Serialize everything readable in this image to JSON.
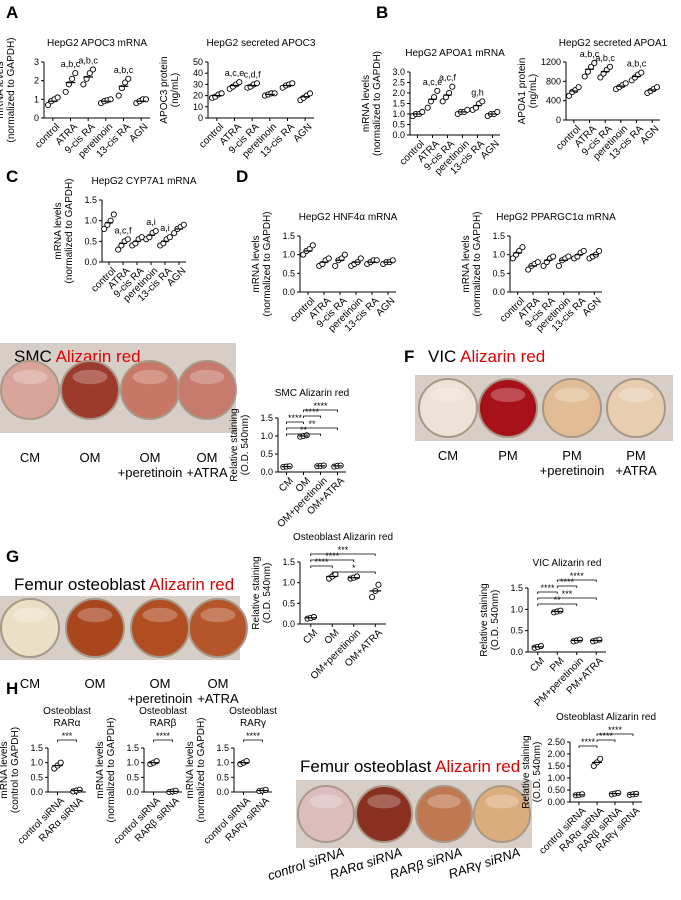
{
  "panel_letters": [
    "A",
    "B",
    "C",
    "D",
    "E",
    "F",
    "G",
    "H"
  ],
  "photos": [
    {
      "title": "SMC",
      "stain": "Alizarin red",
      "labels": [
        [
          "CM"
        ],
        [
          "OM"
        ],
        [
          "OM",
          "+peretinoin"
        ],
        [
          "OM",
          "+ATRA"
        ]
      ],
      "well_colors": [
        "#d8a59a",
        "#9c3b2c",
        "#c77763",
        "#c57a6c"
      ]
    },
    {
      "title": "VIC",
      "stain": "Alizarin red",
      "labels": [
        [
          "CM"
        ],
        [
          "PM"
        ],
        [
          "PM",
          "+peretinoin"
        ],
        [
          "PM",
          "+ATRA"
        ]
      ],
      "well_colors": [
        "#ece2d6",
        "#a8101a",
        "#e2bc94",
        "#e8cdb0"
      ]
    },
    {
      "title": "Femur osteoblast",
      "stain": "Alizarin red",
      "labels": [
        [
          "CM"
        ],
        [
          "OM"
        ],
        [
          "OM",
          "+peretinoin"
        ],
        [
          "OM",
          "+ATRA"
        ]
      ],
      "well_colors": [
        "#eae0c6",
        "#a8461e",
        "#b04e22",
        "#b5562a"
      ]
    },
    {
      "title": "Femur osteoblast",
      "stain": "Alizarin red",
      "labels": [
        [
          "control siRNA"
        ],
        [
          "RARα siRNA"
        ],
        [
          "RARβ siRNA"
        ],
        [
          "RARγ siRNA"
        ]
      ],
      "well_colors": [
        "#dcbcbc",
        "#8a3020",
        "#c07850",
        "#dcad7c"
      ]
    }
  ],
  "chart_data": [
    {
      "type": "dot",
      "title": [
        "HepG2 APOC3 mRNA"
      ],
      "ylabel": [
        "mRNA levels",
        "(normalized to GAPDH)"
      ],
      "color": "#000000",
      "categories": [
        "control",
        "ATRA",
        "9-cis RA",
        "peretinoin",
        "13-cis RA",
        "AGN"
      ],
      "points": [
        [
          0.7,
          0.9,
          1.0,
          1.1
        ],
        [
          1.4,
          1.8,
          2.1,
          2.4
        ],
        [
          1.8,
          2.1,
          2.4,
          2.6
        ],
        [
          0.8,
          0.9,
          0.95,
          1.0
        ],
        [
          1.2,
          1.6,
          1.9,
          2.1
        ],
        [
          0.8,
          0.9,
          1.0,
          1.0
        ]
      ],
      "means": [
        0.9,
        1.9,
        2.2,
        0.9,
        1.7,
        0.9
      ],
      "letters": [
        null,
        "a,b,c",
        "a,b,c",
        null,
        "a,b,c",
        null
      ],
      "ylim": [
        0,
        3
      ],
      "yticks": [
        0,
        1,
        2,
        3
      ]
    },
    {
      "type": "dot",
      "title": [
        "HepG2 secreted APOC3"
      ],
      "ylabel": [
        "APOC3 protein",
        "(ng/mL)"
      ],
      "color": "#000000",
      "categories": [
        "control",
        "ATRA",
        "9-cis RA",
        "peretinoin",
        "13-cis RA",
        "AGN"
      ],
      "points": [
        [
          18,
          19,
          21,
          22
        ],
        [
          26,
          28,
          30,
          32
        ],
        [
          27,
          28,
          30,
          31
        ],
        [
          20,
          21,
          22,
          22
        ],
        [
          27,
          29,
          30,
          31
        ],
        [
          16,
          18,
          20,
          22
        ]
      ],
      "means": [
        20,
        29,
        29,
        21,
        29,
        19
      ],
      "letters": [
        null,
        "a,c,e",
        "c,d,f",
        null,
        null,
        null
      ],
      "ylim": [
        0,
        50
      ],
      "yticks": [
        0,
        10,
        20,
        30,
        40,
        50
      ]
    },
    {
      "type": "dot",
      "title": [
        "HepG2 APOA1 mRNA"
      ],
      "ylabel": [
        "mRNA levels",
        "(normalized to GAPDH)"
      ],
      "color": "#000000",
      "categories": [
        "control",
        "ATRA",
        "9-cis RA",
        "peretinoin",
        "13-cis RA",
        "AGN"
      ],
      "points": [
        [
          0.9,
          1.0,
          1.0,
          1.1
        ],
        [
          1.3,
          1.6,
          1.8,
          2.1
        ],
        [
          1.6,
          1.8,
          2.0,
          2.3
        ],
        [
          1.0,
          1.1,
          1.1,
          1.2
        ],
        [
          1.2,
          1.3,
          1.5,
          1.6
        ],
        [
          0.9,
          1.0,
          1.0,
          1.1
        ]
      ],
      "means": [
        1.0,
        1.7,
        1.9,
        1.1,
        1.4,
        1.0
      ],
      "letters": [
        null,
        "a,c,e",
        "a,c,f",
        null,
        "g,h",
        null
      ],
      "ylim": [
        0,
        3
      ],
      "yticks": [
        {
          "value": 0,
          "label": "0.0"
        },
        0.5,
        {
          "value": 1,
          "label": "1.0"
        },
        1.5,
        {
          "value": 2,
          "label": "2.0"
        },
        2.5,
        {
          "value": 3,
          "label": "3.0"
        }
      ]
    },
    {
      "type": "dot",
      "title": [
        "HepG2 secreted APOA1"
      ],
      "ylabel": [
        "APOA1 protein",
        "(ng/mL)"
      ],
      "color": "#000000",
      "categories": [
        "control",
        "ATRA",
        "9-cis RA",
        "peretinoin",
        "13-cis RA",
        "AGN"
      ],
      "points": [
        [
          500,
          580,
          620,
          680
        ],
        [
          900,
          1000,
          1100,
          1180
        ],
        [
          880,
          960,
          1040,
          1100
        ],
        [
          640,
          680,
          720,
          760
        ],
        [
          820,
          880,
          940,
          980
        ],
        [
          560,
          600,
          640,
          680
        ]
      ],
      "means": [
        600,
        1050,
        1000,
        700,
        900,
        620
      ],
      "letters": [
        null,
        "a,b,c",
        "a,b,c",
        null,
        "a,b,c",
        null
      ],
      "ylim": [
        0,
        1200
      ],
      "yticks": [
        0,
        400,
        800,
        1200
      ]
    },
    {
      "type": "dot",
      "title": [
        "HepG2 CYP7A1 mRNA"
      ],
      "ylabel": [
        "mRNA levels",
        "(normalized to GAPDH)"
      ],
      "color": "#000000",
      "categories": [
        "control",
        "ATRA",
        "9-cis RA",
        "peretinoin",
        "13-cis RA",
        "AGN"
      ],
      "points": [
        [
          0.8,
          0.9,
          1.0,
          1.15
        ],
        [
          0.3,
          0.4,
          0.5,
          0.55
        ],
        [
          0.4,
          0.45,
          0.55,
          0.6
        ],
        [
          0.55,
          0.6,
          0.7,
          0.75
        ],
        [
          0.4,
          0.45,
          0.55,
          0.6
        ],
        [
          0.7,
          0.8,
          0.85,
          0.9
        ]
      ],
      "means": [
        0.95,
        0.45,
        0.5,
        0.65,
        0.5,
        0.8
      ],
      "letters": [
        null,
        "a,c,f",
        null,
        "a,i",
        "a,i",
        null
      ],
      "ylim": [
        0,
        1.5
      ],
      "yticks": [
        {
          "value": 0,
          "label": "0.0"
        },
        0.5,
        {
          "value": 1,
          "label": "1.0"
        },
        1.5
      ]
    },
    {
      "type": "dot",
      "title": [
        "HepG2 HNF4α mRNA"
      ],
      "ylabel": [
        "mRNA levels",
        "(normalized to GAPDH)"
      ],
      "color": "#000000",
      "categories": [
        "control",
        "ATRA",
        "9-cis RA",
        "peretinoin",
        "13-cis RA",
        "AGN"
      ],
      "points": [
        [
          1.0,
          1.1,
          1.15,
          1.25
        ],
        [
          0.7,
          0.75,
          0.85,
          0.9
        ],
        [
          0.7,
          0.85,
          0.9,
          1.0
        ],
        [
          0.7,
          0.75,
          0.8,
          0.9
        ],
        [
          0.75,
          0.8,
          0.85,
          0.85
        ],
        [
          0.75,
          0.8,
          0.8,
          0.85
        ]
      ],
      "means": [
        1.1,
        0.8,
        0.85,
        0.8,
        0.8,
        0.8
      ],
      "ylim": [
        0,
        1.5
      ],
      "yticks": [
        {
          "value": 0,
          "label": "0.0"
        },
        0.5,
        {
          "value": 1,
          "label": "1.0"
        },
        1.5
      ]
    },
    {
      "type": "dot",
      "title": [
        "HepG2 PPARGC1α mRNA"
      ],
      "ylabel": [
        "mRNA levels",
        "(normalized to GAPDH)"
      ],
      "color": "#000000",
      "categories": [
        "control",
        "ATRA",
        "9-cis RA",
        "peretinoin",
        "13-cis RA",
        "AGN"
      ],
      "points": [
        [
          0.9,
          1.0,
          1.1,
          1.2
        ],
        [
          0.6,
          0.7,
          0.75,
          0.8
        ],
        [
          0.7,
          0.8,
          0.9,
          0.95
        ],
        [
          0.7,
          0.85,
          0.9,
          0.95
        ],
        [
          0.9,
          0.95,
          1.05,
          1.1
        ],
        [
          0.9,
          0.95,
          1.0,
          1.1
        ]
      ],
      "means": [
        1.05,
        0.7,
        0.85,
        0.85,
        1.0,
        1.0
      ],
      "ylim": [
        0,
        1.5
      ],
      "yticks": [
        {
          "value": 0,
          "label": "0.0"
        },
        0.5,
        {
          "value": 1,
          "label": "1.0"
        },
        1.5
      ]
    },
    {
      "type": "dot",
      "title": [
        "SMC Alizarin red"
      ],
      "ylabel": [
        "Relative staining",
        "(O.D. 540nm)"
      ],
      "color": "#000000",
      "categories": [
        "CM",
        "OM",
        "OM+peretinoin",
        "OM+ATRA"
      ],
      "points": [
        [
          0.14,
          0.15,
          0.16
        ],
        [
          0.98,
          1.0,
          1.02
        ],
        [
          0.16,
          0.17,
          0.18
        ],
        [
          0.15,
          0.17,
          0.18
        ]
      ],
      "means": [
        0.15,
        1.0,
        0.17,
        0.17
      ],
      "brackets": [
        {
          "from": 1,
          "to": 3,
          "label": "****"
        },
        {
          "from": 1,
          "to": 2,
          "label": "****"
        },
        {
          "from": 0,
          "to": 1,
          "label": "****"
        },
        {
          "from": 0,
          "to": 3,
          "label": "**"
        },
        {
          "from": 0,
          "to": 2,
          "label": "**"
        }
      ],
      "ylim": [
        0,
        1.5
      ],
      "yticks": [
        {
          "value": 0,
          "label": "0.0"
        },
        0.5,
        {
          "value": 1,
          "label": "1.0"
        },
        1.5
      ]
    },
    {
      "type": "dot",
      "title": [
        "VIC Alizarin red"
      ],
      "ylabel": [
        "Relative staining",
        "(O.D. 540nm)"
      ],
      "color": "#000000",
      "categories": [
        "CM",
        "PM",
        "PM+peretinoin",
        "PM+ATRA"
      ],
      "points": [
        [
          0.1,
          0.12,
          0.14
        ],
        [
          0.93,
          0.95,
          0.97
        ],
        [
          0.25,
          0.27,
          0.29
        ],
        [
          0.25,
          0.27,
          0.29
        ]
      ],
      "means": [
        0.12,
        0.95,
        0.27,
        0.27
      ],
      "brackets": [
        {
          "from": 1,
          "to": 3,
          "label": "****"
        },
        {
          "from": 1,
          "to": 2,
          "label": "****"
        },
        {
          "from": 0,
          "to": 1,
          "label": "****"
        },
        {
          "from": 0,
          "to": 3,
          "label": "***"
        },
        {
          "from": 0,
          "to": 2,
          "label": "**"
        }
      ],
      "ylim": [
        0,
        1.5
      ],
      "yticks": [
        {
          "value": 0,
          "label": "0.0"
        },
        0.5,
        {
          "value": 1,
          "label": "1.0"
        },
        1.5
      ]
    },
    {
      "type": "dot",
      "title": [
        "Osteoblast Alizarin red"
      ],
      "ylabel": [
        "Relative staining",
        "(O.D. 540nm)"
      ],
      "color": "#000000",
      "categories": [
        "CM",
        "OM",
        "OM+peretinoin",
        "OM+ATRA"
      ],
      "points": [
        [
          0.13,
          0.15,
          0.17
        ],
        [
          1.1,
          1.15,
          1.2
        ],
        [
          1.1,
          1.12,
          1.15
        ],
        [
          0.65,
          0.8,
          0.95
        ]
      ],
      "means": [
        0.15,
        1.15,
        1.12,
        0.8
      ],
      "brackets": [
        {
          "from": 0,
          "to": 3,
          "label": "***"
        },
        {
          "from": 0,
          "to": 2,
          "label": "****"
        },
        {
          "from": 0,
          "to": 1,
          "label": "****"
        },
        {
          "from": 1,
          "to": 3,
          "label": "*"
        }
      ],
      "ylim": [
        0,
        1.5
      ],
      "yticks": [
        {
          "value": 0,
          "label": "0.0"
        },
        0.5,
        {
          "value": 1,
          "label": "1.0"
        },
        1.5
      ]
    },
    {
      "type": "dot",
      "title": [
        "Osteoblast",
        "RARα"
      ],
      "ylabel": [
        "mRNA levels",
        "(control to GAPDH)"
      ],
      "color": "#000000",
      "categories": [
        "control siRNA",
        "RARα siRNA"
      ],
      "points": [
        [
          0.8,
          0.9,
          1.0
        ],
        [
          0.02,
          0.05,
          0.08
        ]
      ],
      "means": [
        0.9,
        0.05
      ],
      "brackets": [
        {
          "from": 0,
          "to": 1,
          "label": "***"
        }
      ],
      "ylim": [
        0,
        1.5
      ],
      "yticks": [
        {
          "value": 0,
          "label": "0.0"
        },
        0.5,
        {
          "value": 1,
          "label": "1.0"
        },
        1.5
      ]
    },
    {
      "type": "dot",
      "title": [
        "Osteoblast",
        "RARβ"
      ],
      "ylabel": [
        "mRNA levels",
        "(normalized to GAPDH)"
      ],
      "color": "#000000",
      "categories": [
        "control siRNA",
        "RARβ siRNA"
      ],
      "points": [
        [
          0.95,
          1.0,
          1.05
        ],
        [
          0.0,
          0.02,
          0.04
        ]
      ],
      "means": [
        1.0,
        0.02
      ],
      "brackets": [
        {
          "from": 0,
          "to": 1,
          "label": "****"
        }
      ],
      "ylim": [
        0,
        1.5
      ],
      "yticks": [
        {
          "value": 0,
          "label": "0.0"
        },
        0.5,
        {
          "value": 1,
          "label": "1.0"
        },
        1.5
      ]
    },
    {
      "type": "dot",
      "title": [
        "Osteoblast",
        "RARγ"
      ],
      "ylabel": [
        "mRNA levels",
        "(normalized to GAPDH)"
      ],
      "color": "#000000",
      "categories": [
        "control siRNA",
        "RARγ siRNA"
      ],
      "points": [
        [
          0.95,
          1.0,
          1.05
        ],
        [
          0.03,
          0.05,
          0.07
        ]
      ],
      "means": [
        1.0,
        0.05
      ],
      "brackets": [
        {
          "from": 0,
          "to": 1,
          "label": "****"
        }
      ],
      "ylim": [
        0,
        1.5
      ],
      "yticks": [
        {
          "value": 0,
          "label": "0.0"
        },
        0.5,
        {
          "value": 1,
          "label": "1.0"
        },
        1.5
      ]
    },
    {
      "type": "dot",
      "title": [
        "Osteoblast Alizarin red"
      ],
      "ylabel": [
        "Relative staining",
        "(O.D. 540nm)"
      ],
      "color": "#000000",
      "categories": [
        "control siRNA",
        "RARα siRNA",
        "RARβ siRNA",
        "RARγ siRNA"
      ],
      "points": [
        [
          0.28,
          0.3,
          0.32
        ],
        [
          1.5,
          1.65,
          1.8
        ],
        [
          0.32,
          0.35,
          0.38
        ],
        [
          0.3,
          0.32,
          0.34
        ]
      ],
      "means": [
        0.3,
        1.65,
        0.35,
        0.32
      ],
      "brackets": [
        {
          "from": 1,
          "to": 3,
          "label": "****"
        },
        {
          "from": 1,
          "to": 2,
          "label": "****"
        },
        {
          "from": 0,
          "to": 1,
          "label": "****"
        }
      ],
      "ylim": [
        0,
        2.5
      ],
      "yticks": [
        {
          "value": 0,
          "label": "0.00"
        },
        {
          "value": 0.5,
          "label": "0.50"
        },
        {
          "value": 1,
          "label": "1.00"
        },
        {
          "value": 1.5,
          "label": "1.50"
        },
        {
          "value": 2,
          "label": "2.00"
        },
        {
          "value": 2.5,
          "label": "2.50"
        }
      ]
    }
  ]
}
